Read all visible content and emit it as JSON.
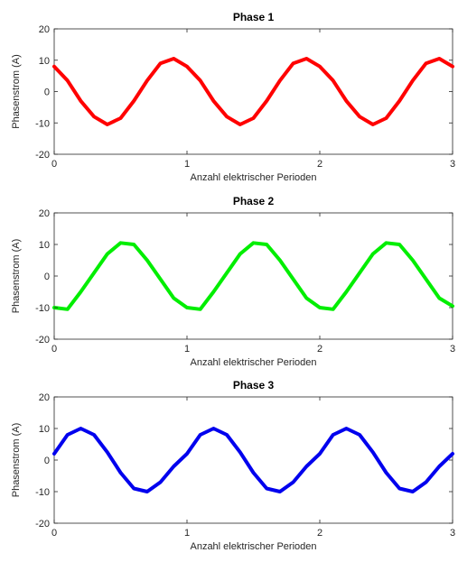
{
  "chart_data": [
    {
      "type": "line",
      "title": "Phase 1",
      "xlabel": "Anzahl elektrischer Perioden",
      "ylabel": "Phasenstrom (A)",
      "xlim": [
        0,
        3
      ],
      "ylim": [
        -20,
        20
      ],
      "xticks": [
        0,
        1,
        2,
        3
      ],
      "yticks": [
        -20,
        -10,
        0,
        10,
        20
      ],
      "grid": false,
      "series": [
        {
          "color": "#ff0000",
          "x": [
            0,
            0.1,
            0.2,
            0.3,
            0.4,
            0.5,
            0.6,
            0.7,
            0.8,
            0.9,
            1.0,
            1.1,
            1.2,
            1.3,
            1.4,
            1.5,
            1.6,
            1.7,
            1.8,
            1.9,
            2.0,
            2.1,
            2.2,
            2.3,
            2.4,
            2.5,
            2.6,
            2.7,
            2.8,
            2.9,
            3.0
          ],
          "y": [
            8.0,
            3.5,
            -3.0,
            -8.0,
            -10.5,
            -8.5,
            -3.0,
            3.5,
            9.0,
            10.5,
            8.0,
            3.5,
            -3.0,
            -8.0,
            -10.5,
            -8.5,
            -3.0,
            3.5,
            9.0,
            10.5,
            8.0,
            3.5,
            -3.0,
            -8.0,
            -10.5,
            -8.5,
            -3.0,
            3.5,
            9.0,
            10.5,
            8.0
          ]
        }
      ]
    },
    {
      "type": "line",
      "title": "Phase 2",
      "xlabel": "Anzahl elektrischer Perioden",
      "ylabel": "Phasenstrom (A)",
      "xlim": [
        0,
        3
      ],
      "ylim": [
        -20,
        20
      ],
      "xticks": [
        0,
        1,
        2,
        3
      ],
      "yticks": [
        -20,
        -10,
        0,
        10,
        20
      ],
      "grid": false,
      "series": [
        {
          "color": "#00ee00",
          "x": [
            0,
            0.1,
            0.2,
            0.3,
            0.4,
            0.5,
            0.6,
            0.7,
            0.8,
            0.9,
            1.0,
            1.1,
            1.2,
            1.3,
            1.4,
            1.5,
            1.6,
            1.7,
            1.8,
            1.9,
            2.0,
            2.1,
            2.2,
            2.3,
            2.4,
            2.5,
            2.6,
            2.7,
            2.8,
            2.9,
            3.0
          ],
          "y": [
            -10.0,
            -10.5,
            -5.0,
            1.0,
            7.0,
            10.5,
            10.0,
            5.0,
            -1.0,
            -7.0,
            -10.0,
            -10.5,
            -5.0,
            1.0,
            7.0,
            10.5,
            10.0,
            5.0,
            -1.0,
            -7.0,
            -10.0,
            -10.5,
            -5.0,
            1.0,
            7.0,
            10.5,
            10.0,
            5.0,
            -1.0,
            -7.0,
            -9.5
          ]
        }
      ]
    },
    {
      "type": "line",
      "title": "Phase 3",
      "xlabel": "Anzahl elektrischer Perioden",
      "ylabel": "Phasenstrom (A)",
      "xlim": [
        0,
        3
      ],
      "ylim": [
        -20,
        20
      ],
      "xticks": [
        0,
        1,
        2,
        3
      ],
      "yticks": [
        -20,
        -10,
        0,
        10,
        20
      ],
      "grid": false,
      "series": [
        {
          "color": "#0000ee",
          "x": [
            0,
            0.1,
            0.2,
            0.3,
            0.4,
            0.5,
            0.6,
            0.7,
            0.8,
            0.9,
            1.0,
            1.1,
            1.2,
            1.3,
            1.4,
            1.5,
            1.6,
            1.7,
            1.8,
            1.9,
            2.0,
            2.1,
            2.2,
            2.3,
            2.4,
            2.5,
            2.6,
            2.7,
            2.8,
            2.9,
            3.0
          ],
          "y": [
            2.0,
            8.0,
            10.0,
            8.0,
            2.5,
            -4.0,
            -9.0,
            -10.0,
            -7.0,
            -2.0,
            2.0,
            8.0,
            10.0,
            8.0,
            2.5,
            -4.0,
            -9.0,
            -10.0,
            -7.0,
            -2.0,
            2.0,
            8.0,
            10.0,
            8.0,
            2.5,
            -4.0,
            -9.0,
            -10.0,
            -7.0,
            -2.0,
            2.0
          ]
        }
      ]
    }
  ]
}
